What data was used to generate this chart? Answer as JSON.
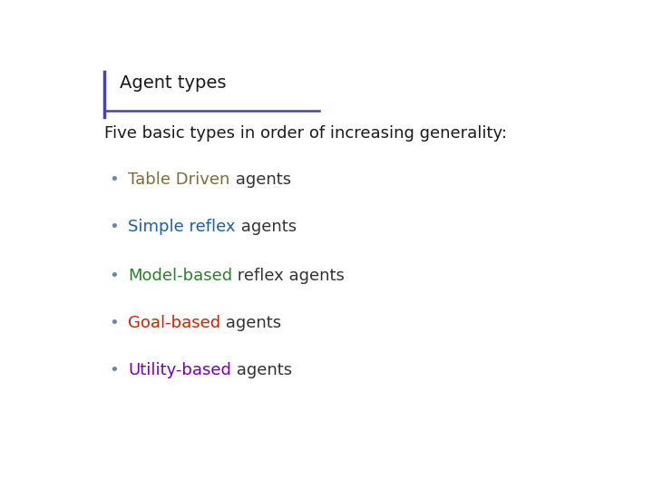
{
  "title": "Agent types",
  "subtitle": "Five basic types in order of increasing generality:",
  "background_color": "#ffffff",
  "title_color": "#1a1a1a",
  "subtitle_color": "#1a1a1a",
  "title_fontsize": 14,
  "subtitle_fontsize": 13,
  "bullet_fontsize": 13,
  "bullet_color": "#333333",
  "accent_line_color": "#4444aa",
  "vertical_line_color": "#4444aa",
  "bullets": [
    {
      "colored_text": "Table Driven",
      "colored_color": "#7B6B3D",
      "plain_text": " agents"
    },
    {
      "colored_text": "Simple reflex",
      "colored_color": "#1a5faa",
      "plain_text": " agents"
    },
    {
      "colored_text": "Model-based",
      "colored_color": "#2e7d2e",
      "plain_text": " reflex agents"
    },
    {
      "colored_text": "Goal-based",
      "colored_color": "#cc2200",
      "plain_text": " agents"
    },
    {
      "colored_text": "Utility-based",
      "colored_color": "#7700aa",
      "plain_text": " agents"
    }
  ]
}
